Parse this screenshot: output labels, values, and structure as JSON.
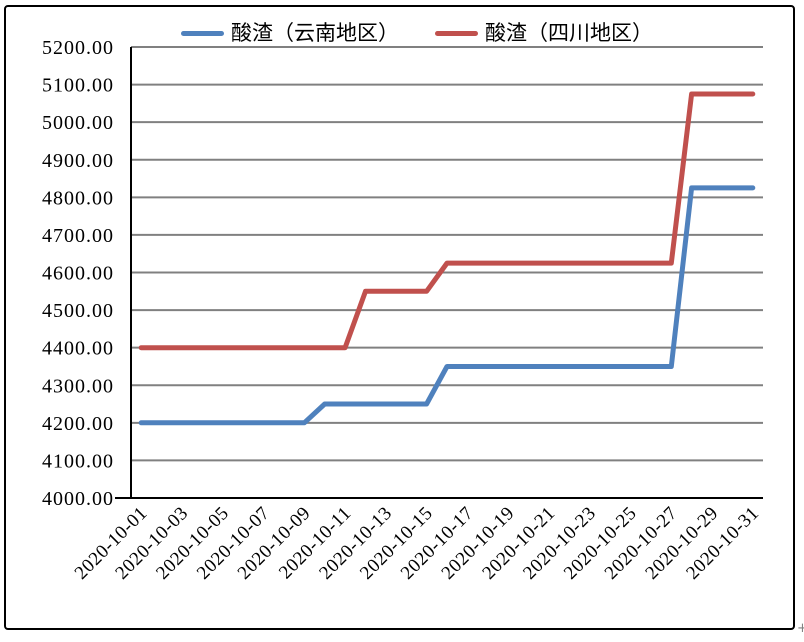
{
  "chart_data": {
    "type": "line",
    "title": "",
    "xlabel": "",
    "ylabel": "",
    "x_categories": [
      "2020-10-01",
      "2020-10-02",
      "2020-10-03",
      "2020-10-04",
      "2020-10-05",
      "2020-10-06",
      "2020-10-07",
      "2020-10-08",
      "2020-10-09",
      "2020-10-10",
      "2020-10-11",
      "2020-10-12",
      "2020-10-13",
      "2020-10-14",
      "2020-10-15",
      "2020-10-16",
      "2020-10-17",
      "2020-10-18",
      "2020-10-19",
      "2020-10-20",
      "2020-10-21",
      "2020-10-22",
      "2020-10-23",
      "2020-10-24",
      "2020-10-25",
      "2020-10-26",
      "2020-10-27",
      "2020-10-28",
      "2020-10-29",
      "2020-10-30",
      "2020-10-31"
    ],
    "x_ticks_shown_every": 2,
    "x_tick_rotation_deg": -45,
    "series": [
      {
        "name": "酸渣（云南地区）",
        "color": "#4F81BD",
        "values": [
          4200,
          4200,
          4200,
          4200,
          4200,
          4200,
          4200,
          4200,
          4200,
          4250,
          4250,
          4250,
          4250,
          4250,
          4250,
          4350,
          4350,
          4350,
          4350,
          4350,
          4350,
          4350,
          4350,
          4350,
          4350,
          4350,
          4350,
          4825,
          4825,
          4825,
          4825
        ]
      },
      {
        "name": "酸渣（四川地区）",
        "color": "#C0504D",
        "values": [
          4400,
          4400,
          4400,
          4400,
          4400,
          4400,
          4400,
          4400,
          4400,
          4400,
          4400,
          4550,
          4550,
          4550,
          4550,
          4625,
          4625,
          4625,
          4625,
          4625,
          4625,
          4625,
          4625,
          4625,
          4625,
          4625,
          4625,
          5075,
          5075,
          5075,
          5075
        ]
      }
    ],
    "ylim": [
      4000,
      5200
    ],
    "ytick_step": 100,
    "y_tick_labels": [
      "4000.00",
      "4100.00",
      "4200.00",
      "4300.00",
      "4400.00",
      "4500.00",
      "4600.00",
      "4700.00",
      "4800.00",
      "4900.00",
      "5000.00",
      "5100.00",
      "5200.00"
    ],
    "grid": "horizontal",
    "grid_color": "#808080",
    "axis_color": "#000000",
    "legend_position": "top"
  },
  "cursor_artifact": "+"
}
